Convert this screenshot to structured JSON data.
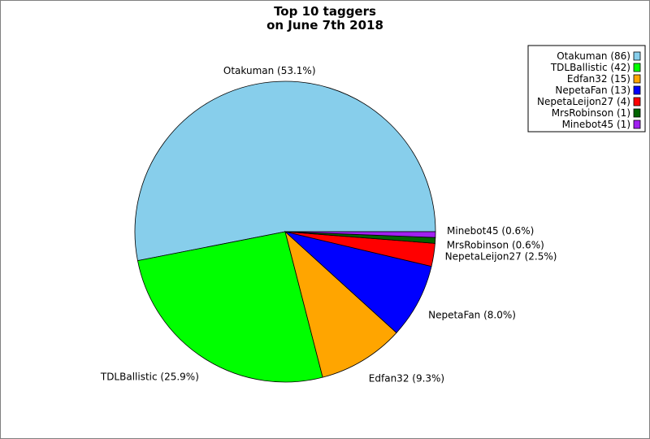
{
  "chart_data": {
    "type": "pie",
    "title_lines": [
      "Top 10 taggers",
      "on June 7th 2018"
    ],
    "slices": [
      {
        "name": "Otakuman",
        "value": 86,
        "color": "#87ceeb",
        "label": "Otakuman (53.1%)",
        "legend": "Otakuman (86)"
      },
      {
        "name": "TDLBallistic",
        "value": 42,
        "color": "#00ff00",
        "label": "TDLBallistic (25.9%)",
        "legend": "TDLBallistic (42)"
      },
      {
        "name": "Edfan32",
        "value": 15,
        "color": "#ffa500",
        "label": "Edfan32 (9.3%)",
        "legend": "Edfan32 (15)"
      },
      {
        "name": "NepetaFan",
        "value": 13,
        "color": "#0000ff",
        "label": "NepetaFan (8.0%)",
        "legend": "NepetaFan (13)"
      },
      {
        "name": "NepetaLeijon27",
        "value": 4,
        "color": "#ff0000",
        "label": "NepetaLeijon27 (2.5%)",
        "legend": "NepetaLeijon27 (4)"
      },
      {
        "name": "MrsRobinson",
        "value": 1,
        "color": "#006400",
        "label": "MrsRobinson (0.6%)",
        "legend": "MrsRobinson (1)"
      },
      {
        "name": "Minebot45",
        "value": 1,
        "color": "#a020f0",
        "label": "Minebot45 (0.6%)",
        "legend": "Minebot45 (1)"
      }
    ],
    "legend_position": "top-right"
  }
}
